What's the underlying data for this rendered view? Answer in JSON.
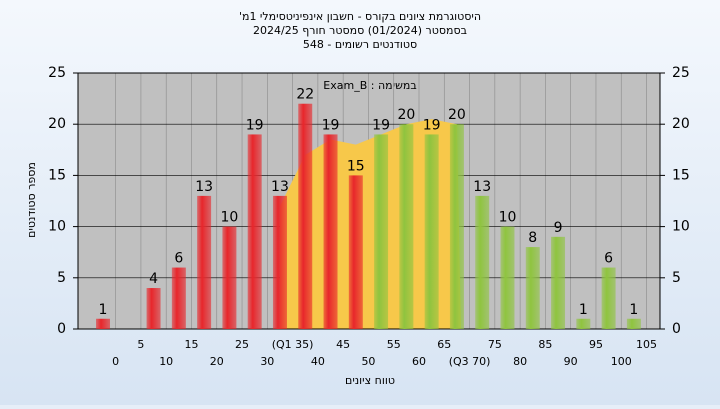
{
  "chart_data": {
    "type": "bar",
    "title": "היסטוגרמת ציונים בקורס - חשבון אינפיניטסימלי 1מ'",
    "subtitle": "בסמסטר  (01/2024)  סמסטר חורף  2024/25",
    "subtitle2": "סטודנטים רשומים - 548",
    "annotation": "במשימה : Exam_B",
    "x_label": "טווח ציונים",
    "y_label": "מספר סטודנטים",
    "categories": [
      "0",
      "5",
      "10",
      "15",
      "20",
      "25",
      "30",
      "(Q1 35)",
      "40",
      "45",
      "50",
      "55",
      "60",
      "65",
      "(Q3 70)",
      "75",
      "80",
      "85",
      "90",
      "95",
      "100",
      "105"
    ],
    "values": [
      1,
      null,
      4,
      6,
      13,
      10,
      19,
      13,
      22,
      19,
      15,
      19,
      20,
      19,
      20,
      13,
      10,
      8,
      9,
      1,
      6,
      1
    ],
    "colors": [
      "#e8262b",
      "#e8262b",
      "#e8262b",
      "#e8262b",
      "#e8262b",
      "#e8262b",
      "#e8262b",
      "#e8262b",
      "#e8262b",
      "#e8262b",
      "#e8262b",
      "#8fc43f",
      "#8fc43f",
      "#8fc43f",
      "#8fc43f",
      "#8fc43f",
      "#8fc43f",
      "#8fc43f",
      "#8fc43f",
      "#8fc43f",
      "#8fc43f",
      "#8fc43f"
    ],
    "overlay": {
      "color": "#f7c84a",
      "values": [
        null,
        null,
        null,
        null,
        null,
        null,
        null,
        12,
        17,
        18.5,
        18,
        19,
        20,
        20.5,
        20,
        null,
        null,
        null,
        null,
        null,
        null,
        null
      ]
    },
    "ylim": [
      0,
      25
    ],
    "yticks": [
      0,
      5,
      10,
      15,
      20,
      25
    ],
    "grid": true
  }
}
